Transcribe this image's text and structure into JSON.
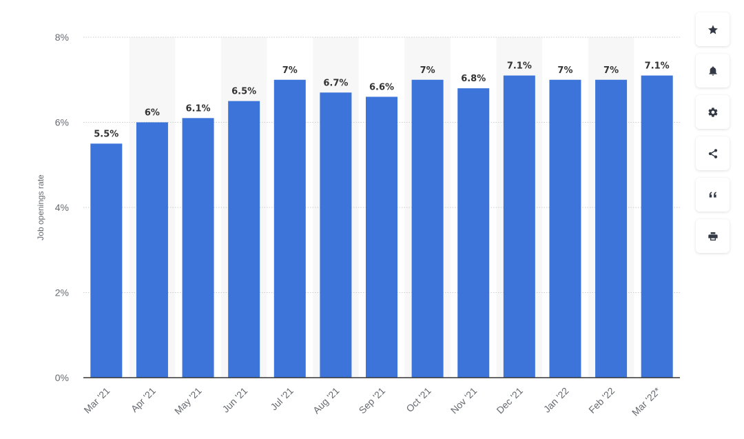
{
  "chart_data": {
    "type": "bar",
    "categories": [
      "Mar '21",
      "Apr '21",
      "May '21",
      "Jun '21",
      "Jul '21",
      "Aug '21",
      "Sep '21",
      "Oct '21",
      "Nov '21",
      "Dec '21",
      "Jan '22",
      "Feb '22",
      "Mar '22*"
    ],
    "values": [
      5.5,
      6,
      6.1,
      6.5,
      7,
      6.7,
      6.6,
      7,
      6.8,
      7.1,
      7,
      7,
      7.1
    ],
    "data_labels": [
      "5.5%",
      "6%",
      "6.1%",
      "6.5%",
      "7%",
      "6.7%",
      "6.6%",
      "7%",
      "6.8%",
      "7.1%",
      "7%",
      "7%",
      "7.1%"
    ],
    "title": "",
    "xlabel": "",
    "ylabel": "Job openings rate",
    "ylim": [
      0,
      8
    ],
    "yticks": [
      0,
      2,
      4,
      6,
      8
    ],
    "ytick_labels": [
      "0%",
      "2%",
      "4%",
      "6%",
      "8%"
    ],
    "grid": true,
    "bar_color": "#3d74d9",
    "band_color": "#f7f7f7"
  },
  "toolbar": {
    "buttons": [
      {
        "name": "favorite-button",
        "icon": "star-icon"
      },
      {
        "name": "notification-button",
        "icon": "bell-icon"
      },
      {
        "name": "settings-button",
        "icon": "gear-icon"
      },
      {
        "name": "share-button",
        "icon": "share-icon"
      },
      {
        "name": "cite-button",
        "icon": "quote-icon"
      },
      {
        "name": "print-button",
        "icon": "print-icon"
      }
    ]
  }
}
